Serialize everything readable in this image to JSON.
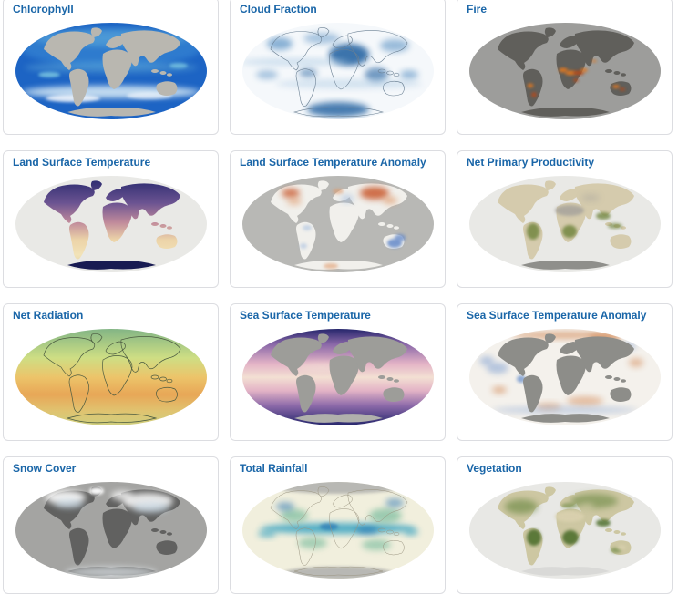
{
  "page": {
    "background": "#ffffff",
    "card_background": "#ffffff",
    "card_border": "#dcdde1",
    "title_color": "#1a66a8"
  },
  "cards": [
    {
      "id": "chlorophyll",
      "title": "Chlorophyll",
      "map_type": "chlorophyll",
      "palette": {
        "ocean": "#1d64c4",
        "ocean_light": "#3e8ed8",
        "band": "#8fdce8",
        "swirl": "#eaf8fa",
        "land": "#b9b7b0"
      }
    },
    {
      "id": "cloud-fraction",
      "title": "Cloud Fraction",
      "map_type": "clouds",
      "palette": {
        "base": "#f5f8fb",
        "light": "#a8c8e2",
        "mid": "#5b93c4",
        "dark": "#1d5d9e",
        "outline": "#6a7f92"
      }
    },
    {
      "id": "fire",
      "title": "Fire",
      "map_type": "fire",
      "palette": {
        "ocean": "#9d9d9b",
        "land": "#605f5b",
        "fire1": "#e07820",
        "fire2": "#b84a18"
      }
    },
    {
      "id": "land-surface-temperature",
      "title": "Land Surface Temperature",
      "map_type": "lst",
      "palette": {
        "ocean": "#e9e9e6",
        "cold": "#23266b",
        "cool": "#6b5391",
        "mild": "#c08a9b",
        "warm": "#ecd3a8",
        "hot": "#f2e3b8",
        "polar": "#181b52"
      }
    },
    {
      "id": "land-surface-temperature-anomaly",
      "title": "Land Surface Temperature Anomaly",
      "map_type": "lst_anomaly",
      "palette": {
        "ocean": "#b8b8b5",
        "land": "#f1f0ec",
        "warm": "#c8572a",
        "warm2": "#e09a6a",
        "cold": "#5d84c8",
        "cold2": "#a8c0e0"
      }
    },
    {
      "id": "net-primary-productivity",
      "title": "Net Primary Productivity",
      "map_type": "npp",
      "palette": {
        "ocean": "#e9e9e6",
        "land": "#d5cbad",
        "desert": "#a9a59d",
        "green": "#72863f",
        "polar": "#8f8f8b"
      }
    },
    {
      "id": "net-radiation",
      "title": "Net Radiation",
      "map_type": "radiation",
      "palette": {
        "top": "#83b585",
        "mid1": "#cede84",
        "mid2": "#e8a757",
        "bottom": "#cfcf7e",
        "outline": "#4a5a40"
      }
    },
    {
      "id": "sea-surface-temperature",
      "title": "Sea Surface Temperature",
      "map_type": "sst",
      "palette": {
        "polar": "#26266c",
        "cool": "#8a68a8",
        "warm": "#e3b3c6",
        "hot": "#f3e0d3",
        "land": "#9d9d99"
      }
    },
    {
      "id": "sea-surface-temperature-anomaly",
      "title": "Sea Surface Temperature Anomaly",
      "map_type": "sst_anomaly",
      "palette": {
        "ocean": "#f4f1ec",
        "warm": "#cf7b42",
        "cold": "#7598cf",
        "land": "#8d8d89"
      }
    },
    {
      "id": "snow-cover",
      "title": "Snow Cover",
      "map_type": "snow",
      "palette": {
        "ocean": "#a4a4a2",
        "land": "#616160",
        "snow": "#ffffff",
        "ice": "#c9dcea"
      }
    },
    {
      "id": "total-rainfall",
      "title": "Total Rainfall",
      "map_type": "rainfall",
      "palette": {
        "base": "#f1efdd",
        "teal": "#2f9fc0",
        "green": "#63b292",
        "blue": "#1d6db0",
        "polar": "#b5b5b1",
        "outline": "#9a9480"
      }
    },
    {
      "id": "vegetation",
      "title": "Vegetation",
      "map_type": "vegetation",
      "palette": {
        "ocean": "#e8e8e5",
        "land": "#cdc7a2",
        "green1": "#50702e",
        "green2": "#7e9455",
        "desert": "#d9d0ae",
        "polar": "#d9d9d7"
      }
    }
  ]
}
